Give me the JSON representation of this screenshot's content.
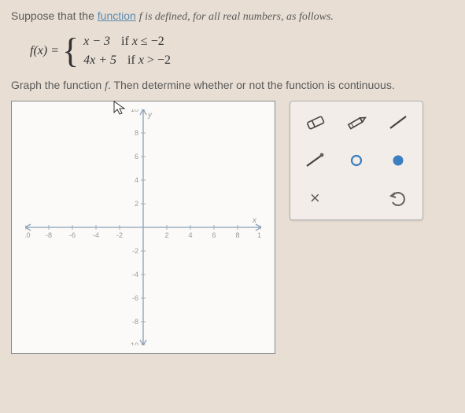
{
  "intro": {
    "pre": "Suppose that the ",
    "link": "function",
    "post": " f is defined, for all real numbers, as follows."
  },
  "equation": {
    "lhs": "f(x) =",
    "pieces": [
      {
        "expr": "x − 3",
        "cond_pre": "if ",
        "cond_var": "x",
        "cond_rest": " ≤ −2"
      },
      {
        "expr": "4x + 5",
        "cond_pre": "if ",
        "cond_var": "x",
        "cond_rest": " > −2"
      }
    ]
  },
  "instruction": "Graph the function f. Then determine whether or not the function is continuous.",
  "axes": {
    "xlim": [
      -10,
      10
    ],
    "ylim": [
      -10,
      10
    ],
    "tick_step": 2,
    "axis_color": "#8aa0b5",
    "tick_color": "#9aaec0",
    "label_color": "#9a9a9a",
    "label_fontsize": 9,
    "arrow_color": "#8aa0b5",
    "x_letter": "x",
    "y_letter": "y"
  },
  "toolbar": {
    "tools": [
      {
        "name": "eraser-tool",
        "stroke": "#444"
      },
      {
        "name": "pencil-tool",
        "stroke": "#444"
      },
      {
        "name": "segment-tool",
        "stroke": "#444"
      },
      {
        "name": "ray-tool",
        "stroke": "#444",
        "dot": "#606060"
      },
      {
        "name": "open-point-tool",
        "stroke": "#3a7fbf",
        "fill": "none"
      },
      {
        "name": "closed-point-tool",
        "stroke": "#3a7fbf",
        "fill": "#3a7fbf"
      },
      {
        "name": "clear-tool",
        "glyph": "×",
        "color": "#606060"
      },
      {
        "name": "undo-tool",
        "stroke": "#606060"
      }
    ]
  }
}
